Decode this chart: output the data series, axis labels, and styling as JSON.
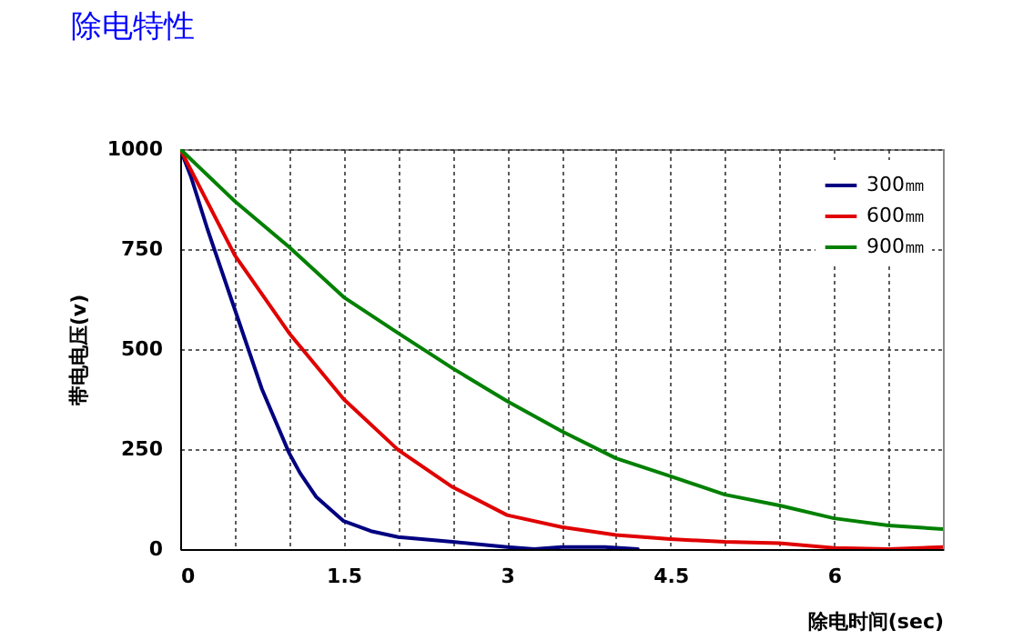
{
  "chart_data": {
    "type": "line",
    "title": "除电特性",
    "xlabel": "除电时间(sec)",
    "ylabel": "带电电压(v)",
    "xlim": [
      0,
      7
    ],
    "xticks": [
      0,
      {
        "value": 0.5,
        "label": null
      },
      {
        "value": 1,
        "label": null
      },
      1.5,
      {
        "value": 2,
        "label": null
      },
      {
        "value": 2.5,
        "label": null
      },
      3,
      {
        "value": 3.5,
        "label": null
      },
      {
        "value": 4,
        "label": null
      },
      4.5,
      {
        "value": 5,
        "label": null
      },
      {
        "value": 5.5,
        "label": null
      },
      6,
      {
        "value": 6.5,
        "label": null
      }
    ],
    "ylim": [
      0,
      1000
    ],
    "yticks": [
      0,
      250,
      500,
      750,
      1000
    ],
    "grid": true,
    "legend": "top right",
    "line_style": "solid",
    "series": [
      {
        "name": "300㎜",
        "color": "#000080",
        "x": [
          0,
          0.1,
          0.25,
          0.5,
          0.75,
          1,
          1.1,
          1.25,
          1.5,
          1.75,
          2,
          2.5,
          3,
          3.25,
          3.5,
          3.9,
          4.2
        ],
        "values": [
          1000,
          930,
          800,
          600,
          400,
          240,
          190,
          130,
          70,
          45,
          30,
          18,
          5,
          0,
          5,
          5,
          0
        ]
      },
      {
        "name": "600㎜",
        "color": "#e00000",
        "x": [
          0,
          0.5,
          1,
          1.5,
          2,
          2.5,
          3,
          3.5,
          4,
          4.5,
          5,
          5.5,
          6,
          6.5,
          7
        ],
        "values": [
          1000,
          735,
          540,
          375,
          248,
          155,
          85,
          55,
          35,
          25,
          18,
          15,
          3,
          0,
          5
        ]
      },
      {
        "name": "900㎜",
        "color": "#008000",
        "x": [
          0,
          0.5,
          1,
          1.5,
          2,
          2.5,
          3,
          3.5,
          4,
          4.5,
          5,
          5.5,
          6,
          6.5,
          7
        ],
        "values": [
          1000,
          870,
          755,
          630,
          540,
          452,
          370,
          295,
          227,
          182,
          136,
          109,
          77,
          59,
          50
        ]
      }
    ]
  }
}
